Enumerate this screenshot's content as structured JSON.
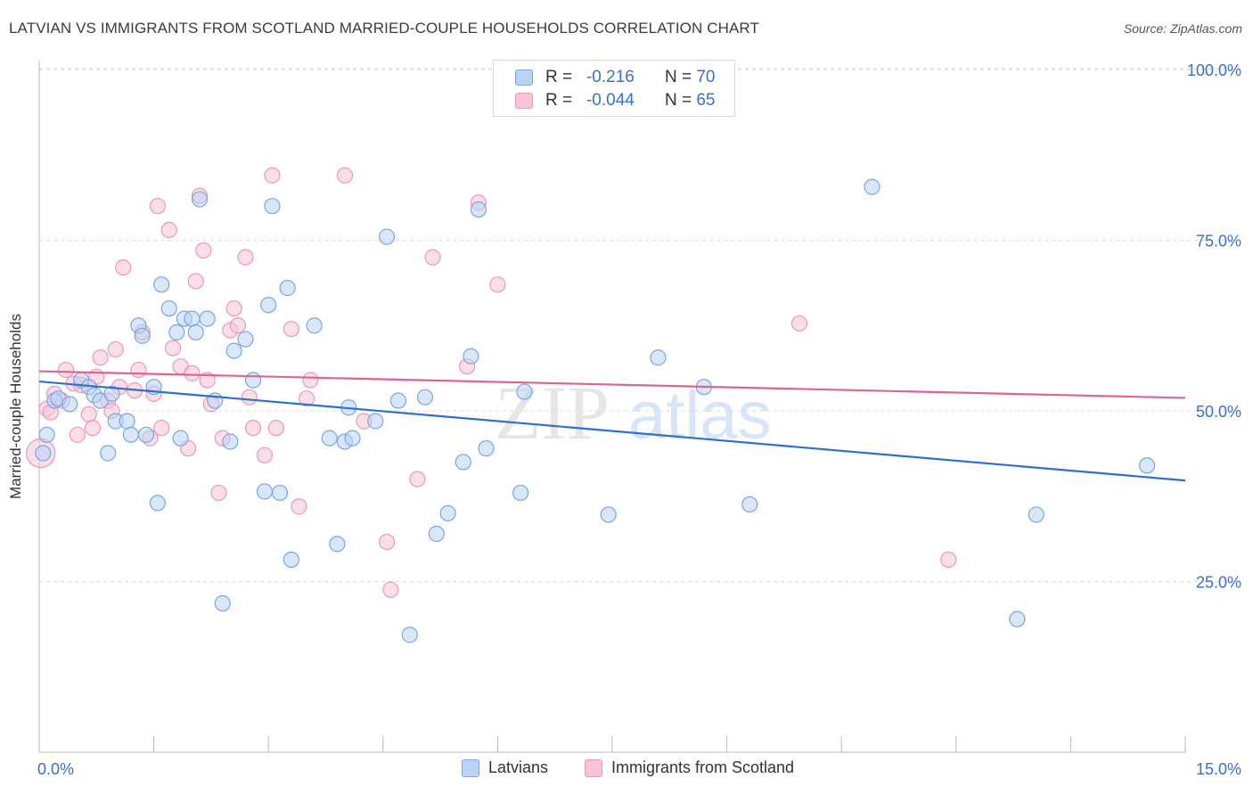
{
  "title": "LATVIAN VS IMMIGRANTS FROM SCOTLAND MARRIED-COUPLE HOUSEHOLDS CORRELATION CHART",
  "source": "Source: ZipAtlas.com",
  "watermark": {
    "zip": "ZIP",
    "atlas": "atlas"
  },
  "legend_top": [
    {
      "r_label": "R =",
      "r_value": "-0.216",
      "n_label": "N =",
      "n_value": "70"
    },
    {
      "r_label": "R =",
      "r_value": "-0.044",
      "n_label": "N =",
      "n_value": "65"
    }
  ],
  "colors": {
    "blue_fill": "#b9d3f5",
    "blue_stroke": "#7aa5e6",
    "blue_line": "#2f6fce",
    "pink_fill": "#f8c4d5",
    "pink_stroke": "#ee98b5",
    "pink_line": "#e0648e",
    "tick_label": "#3a6fd0",
    "grid": "#dcdcdc"
  },
  "chart_data": {
    "type": "scatter",
    "xlabel": "",
    "ylabel": "Married-couple Households",
    "xlim": [
      0,
      15
    ],
    "ylim": [
      0,
      100
    ],
    "x_tick_labels": [
      "0.0%",
      "15.0%"
    ],
    "y_ticks": [
      25,
      50,
      75,
      100
    ],
    "y_tick_labels": [
      "25.0%",
      "50.0%",
      "75.0%",
      "100.0%"
    ],
    "grid": true,
    "legend_position": "bottom-center",
    "series": [
      {
        "name": "Latvians",
        "trend": {
          "x": [
            0,
            15
          ],
          "y": [
            54.3,
            39.8
          ]
        },
        "points": [
          [
            0.05,
            43.8
          ],
          [
            0.1,
            46.5
          ],
          [
            0.2,
            51.5
          ],
          [
            0.25,
            51.8
          ],
          [
            0.4,
            51.0
          ],
          [
            0.55,
            54.5
          ],
          [
            0.65,
            53.5
          ],
          [
            0.72,
            52.3
          ],
          [
            0.8,
            51.5
          ],
          [
            0.9,
            43.8
          ],
          [
            0.95,
            52.5
          ],
          [
            1.0,
            48.5
          ],
          [
            1.15,
            48.5
          ],
          [
            1.2,
            46.5
          ],
          [
            1.3,
            62.5
          ],
          [
            1.35,
            61.0
          ],
          [
            1.4,
            46.5
          ],
          [
            1.5,
            53.5
          ],
          [
            1.55,
            36.5
          ],
          [
            1.6,
            68.5
          ],
          [
            1.7,
            65.0
          ],
          [
            1.8,
            61.5
          ],
          [
            1.85,
            46.0
          ],
          [
            1.9,
            63.5
          ],
          [
            2.0,
            63.5
          ],
          [
            2.05,
            61.5
          ],
          [
            2.1,
            81.0
          ],
          [
            2.2,
            63.5
          ],
          [
            2.3,
            51.5
          ],
          [
            2.4,
            21.8
          ],
          [
            2.5,
            45.5
          ],
          [
            2.55,
            58.8
          ],
          [
            2.7,
            60.5
          ],
          [
            2.8,
            54.5
          ],
          [
            2.95,
            38.2
          ],
          [
            3.0,
            65.5
          ],
          [
            3.05,
            80.0
          ],
          [
            3.15,
            38.0
          ],
          [
            3.25,
            68.0
          ],
          [
            3.3,
            28.2
          ],
          [
            3.6,
            62.5
          ],
          [
            3.8,
            46.0
          ],
          [
            3.9,
            30.5
          ],
          [
            4.0,
            45.5
          ],
          [
            4.05,
            50.5
          ],
          [
            4.1,
            46.0
          ],
          [
            4.4,
            48.5
          ],
          [
            4.55,
            75.5
          ],
          [
            4.7,
            51.5
          ],
          [
            4.85,
            17.2
          ],
          [
            5.05,
            52.0
          ],
          [
            5.2,
            32.0
          ],
          [
            5.35,
            35.0
          ],
          [
            5.55,
            42.5
          ],
          [
            5.65,
            58.0
          ],
          [
            5.75,
            79.5
          ],
          [
            5.85,
            44.5
          ],
          [
            6.3,
            38.0
          ],
          [
            6.35,
            52.8
          ],
          [
            7.45,
            34.8
          ],
          [
            8.1,
            57.8
          ],
          [
            8.7,
            53.5
          ],
          [
            9.3,
            36.3
          ],
          [
            10.9,
            82.8
          ],
          [
            12.8,
            19.5
          ],
          [
            13.05,
            34.8
          ],
          [
            14.5,
            42.0
          ]
        ]
      },
      {
        "name": "Immigrants from Scotland",
        "trend": {
          "x": [
            0,
            15
          ],
          "y": [
            55.8,
            51.9
          ]
        },
        "points": [
          [
            0.1,
            50.3
          ],
          [
            0.15,
            49.8
          ],
          [
            0.2,
            52.5
          ],
          [
            0.3,
            51.5
          ],
          [
            0.35,
            56.0
          ],
          [
            0.45,
            54.0
          ],
          [
            0.5,
            46.5
          ],
          [
            0.55,
            53.8
          ],
          [
            0.65,
            49.5
          ],
          [
            0.7,
            47.5
          ],
          [
            0.75,
            55.0
          ],
          [
            0.8,
            57.8
          ],
          [
            0.9,
            51.5
          ],
          [
            0.95,
            50.0
          ],
          [
            1.0,
            59.0
          ],
          [
            1.05,
            53.5
          ],
          [
            1.1,
            71.0
          ],
          [
            1.25,
            53.0
          ],
          [
            1.3,
            56.0
          ],
          [
            1.35,
            61.5
          ],
          [
            1.45,
            46.0
          ],
          [
            1.5,
            52.5
          ],
          [
            1.55,
            80.0
          ],
          [
            1.6,
            47.5
          ],
          [
            1.7,
            76.5
          ],
          [
            1.75,
            59.2
          ],
          [
            1.85,
            56.5
          ],
          [
            1.95,
            44.5
          ],
          [
            2.0,
            55.5
          ],
          [
            2.05,
            69.0
          ],
          [
            2.1,
            81.5
          ],
          [
            2.15,
            73.5
          ],
          [
            2.2,
            54.5
          ],
          [
            2.25,
            51.0
          ],
          [
            2.35,
            38.0
          ],
          [
            2.4,
            46.0
          ],
          [
            2.5,
            61.8
          ],
          [
            2.55,
            65.0
          ],
          [
            2.6,
            62.5
          ],
          [
            2.7,
            72.5
          ],
          [
            2.75,
            52.0
          ],
          [
            2.8,
            47.5
          ],
          [
            2.95,
            43.5
          ],
          [
            3.05,
            84.5
          ],
          [
            3.1,
            47.5
          ],
          [
            3.3,
            62.0
          ],
          [
            3.4,
            36.0
          ],
          [
            3.5,
            51.8
          ],
          [
            3.55,
            54.5
          ],
          [
            4.0,
            84.5
          ],
          [
            4.25,
            48.5
          ],
          [
            4.55,
            30.8
          ],
          [
            4.6,
            23.8
          ],
          [
            4.95,
            40.0
          ],
          [
            5.15,
            72.5
          ],
          [
            5.6,
            56.5
          ],
          [
            5.75,
            80.5
          ],
          [
            6.0,
            68.5
          ],
          [
            9.95,
            62.8
          ],
          [
            11.9,
            28.2
          ]
        ]
      }
    ]
  }
}
